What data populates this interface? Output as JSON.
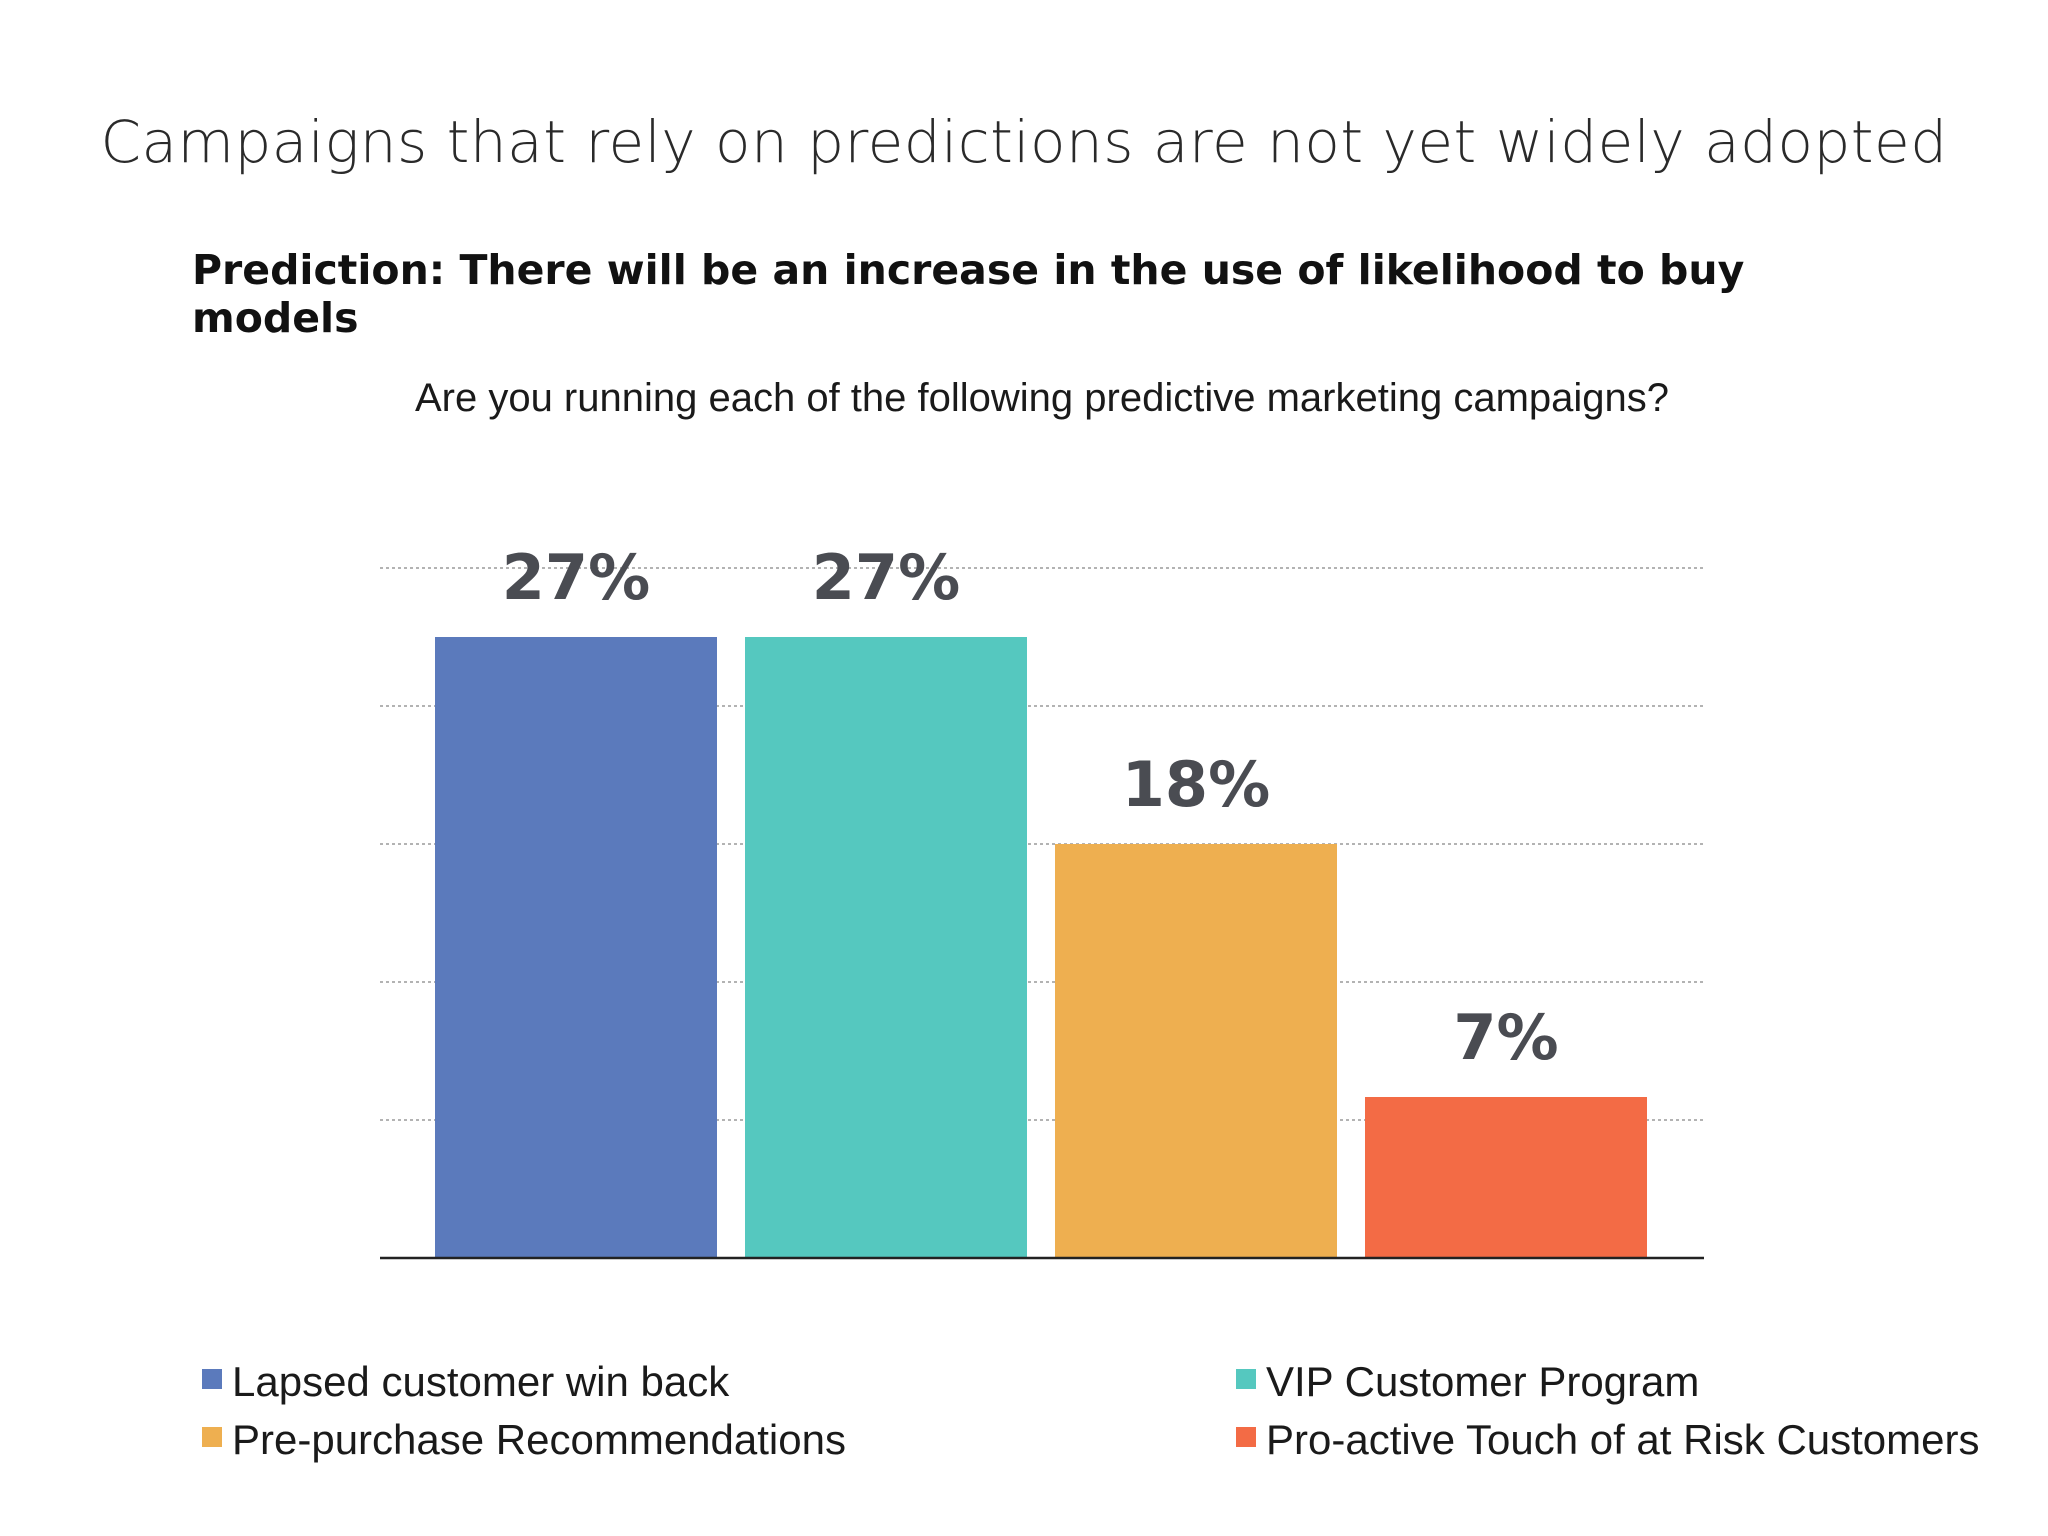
{
  "title": "Campaigns that rely on predictions are not yet widely adopted",
  "subtitle": "Prediction: There will be an increase in the use of likelihood to buy models",
  "question": "Are you running each of the following predictive marketing campaigns?",
  "chart_data": {
    "type": "bar",
    "categories": [
      "Lapsed customer win back",
      "VIP Customer Program",
      "Pre-purchase Recommendations",
      "Pro-active Touch of at Risk Customers"
    ],
    "values": [
      27,
      27,
      18,
      7
    ],
    "value_labels": [
      "27%",
      "27%",
      "18%",
      "7%"
    ],
    "colors": [
      "#5b7abc",
      "#55c8bf",
      "#eeaf50",
      "#f36b45"
    ],
    "ylim": [
      0,
      30
    ],
    "grid": true,
    "legend_position": "bottom",
    "xlabel": "",
    "ylabel": ""
  }
}
